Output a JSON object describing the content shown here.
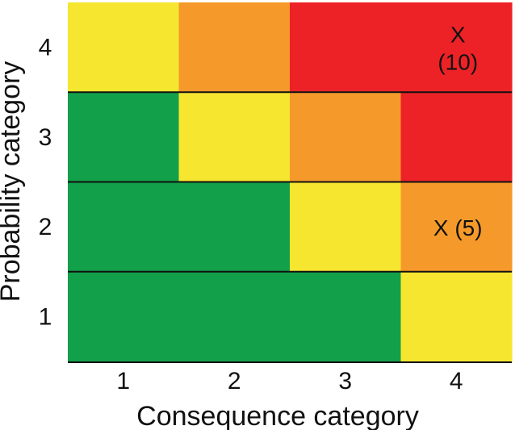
{
  "chart_data": {
    "type": "heatmap",
    "title": "",
    "xlabel": "Consequence category",
    "ylabel": "Probability category",
    "x_categories": [
      "1",
      "2",
      "3",
      "4"
    ],
    "y_categories": [
      "1",
      "2",
      "3",
      "4"
    ],
    "color_scale": {
      "green": "#12a04a",
      "yellow": "#f6e630",
      "orange": "#f59a2a",
      "red": "#ec2227"
    },
    "cells": [
      {
        "x": "1",
        "y": "1",
        "color": "green"
      },
      {
        "x": "2",
        "y": "1",
        "color": "green"
      },
      {
        "x": "3",
        "y": "1",
        "color": "green"
      },
      {
        "x": "4",
        "y": "1",
        "color": "yellow"
      },
      {
        "x": "1",
        "y": "2",
        "color": "green"
      },
      {
        "x": "2",
        "y": "2",
        "color": "green"
      },
      {
        "x": "3",
        "y": "2",
        "color": "yellow"
      },
      {
        "x": "4",
        "y": "2",
        "color": "orange"
      },
      {
        "x": "1",
        "y": "3",
        "color": "green"
      },
      {
        "x": "2",
        "y": "3",
        "color": "yellow"
      },
      {
        "x": "3",
        "y": "3",
        "color": "orange"
      },
      {
        "x": "4",
        "y": "3",
        "color": "red"
      },
      {
        "x": "1",
        "y": "4",
        "color": "yellow"
      },
      {
        "x": "2",
        "y": "4",
        "color": "orange"
      },
      {
        "x": "3",
        "y": "4",
        "color": "red"
      },
      {
        "x": "4",
        "y": "4",
        "color": "red"
      }
    ],
    "annotations": [
      {
        "x": "4",
        "y": "4",
        "lines": [
          "X",
          "(10)"
        ]
      },
      {
        "x": "4",
        "y": "2",
        "lines": [
          "X (5)"
        ]
      }
    ]
  }
}
